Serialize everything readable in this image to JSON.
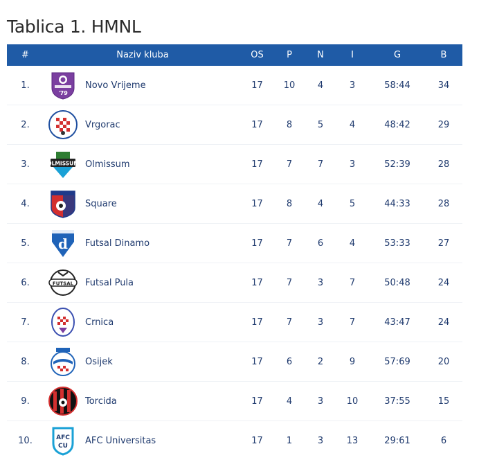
{
  "page": {
    "title": "Tablica 1. HMNL"
  },
  "table": {
    "headers": {
      "rank": "#",
      "club": "Naziv kluba",
      "os": "OS",
      "p": "P",
      "n": "N",
      "i": "I",
      "g": "G",
      "b": "B"
    },
    "rows": [
      {
        "rank": "1.",
        "club": "Novo Vrijeme",
        "os": "17",
        "p": "10",
        "n": "4",
        "i": "3",
        "g": "58:44",
        "b": "34",
        "logo": "novo-vrijeme-logo"
      },
      {
        "rank": "2.",
        "club": "Vrgorac",
        "os": "17",
        "p": "8",
        "n": "5",
        "i": "4",
        "g": "48:42",
        "b": "29",
        "logo": "vrgorac-logo"
      },
      {
        "rank": "3.",
        "club": "Olmissum",
        "os": "17",
        "p": "7",
        "n": "7",
        "i": "3",
        "g": "52:39",
        "b": "28",
        "logo": "olmissum-logo"
      },
      {
        "rank": "4.",
        "club": "Square",
        "os": "17",
        "p": "8",
        "n": "4",
        "i": "5",
        "g": "44:33",
        "b": "28",
        "logo": "square-logo"
      },
      {
        "rank": "5.",
        "club": "Futsal Dinamo",
        "os": "17",
        "p": "7",
        "n": "6",
        "i": "4",
        "g": "53:33",
        "b": "27",
        "logo": "futsal-dinamo-logo"
      },
      {
        "rank": "6.",
        "club": "Futsal Pula",
        "os": "17",
        "p": "7",
        "n": "3",
        "i": "7",
        "g": "50:48",
        "b": "24",
        "logo": "futsal-pula-logo"
      },
      {
        "rank": "7.",
        "club": "Crnica",
        "os": "17",
        "p": "7",
        "n": "3",
        "i": "7",
        "g": "43:47",
        "b": "24",
        "logo": "crnica-logo"
      },
      {
        "rank": "8.",
        "club": "Osijek",
        "os": "17",
        "p": "6",
        "n": "2",
        "i": "9",
        "g": "57:69",
        "b": "20",
        "logo": "osijek-logo"
      },
      {
        "rank": "9.",
        "club": "Torcida",
        "os": "17",
        "p": "4",
        "n": "3",
        "i": "10",
        "g": "37:55",
        "b": "15",
        "logo": "torcida-logo"
      },
      {
        "rank": "10.",
        "club": "AFC Universitas",
        "os": "17",
        "p": "1",
        "n": "3",
        "i": "13",
        "g": "29:61",
        "b": "6",
        "logo": "afc-universitas-logo"
      }
    ]
  },
  "logo_text": {
    "olmissum": "OLMISSUM",
    "pula": "FUTSAL",
    "afc_top": "AFC",
    "afc_bottom": "CU",
    "dinamo": "d",
    "novo": "'79"
  },
  "colors": {
    "header_bg": "#1f5ba6",
    "text": "#1f3a6e",
    "title": "#2b2b2b"
  }
}
